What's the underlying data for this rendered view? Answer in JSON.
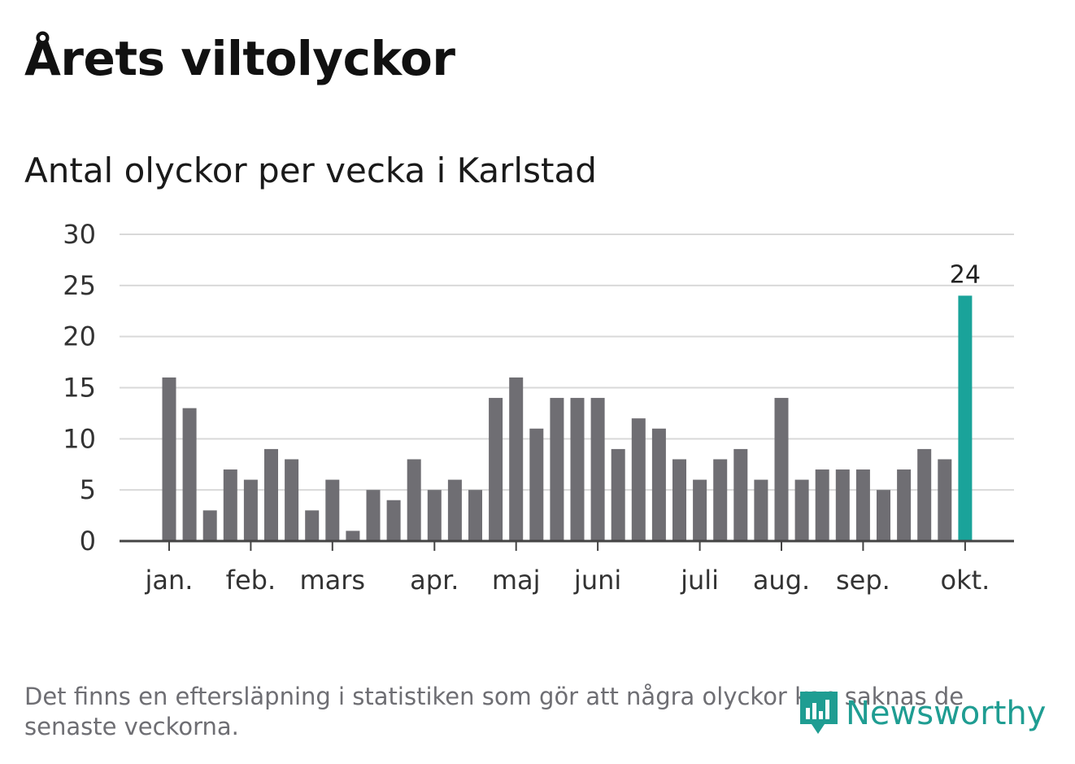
{
  "header": {
    "title": "Årets viltolyckor",
    "subtitle": "Antal olyckor per vecka i Karlstad"
  },
  "footer": {
    "note": "Det finns en eftersläpning i statistiken som gör att några olyckor kan saknas de senaste veckorna.",
    "logo_text": "Newsworthy"
  },
  "colors": {
    "bar": "#6f6e73",
    "highlight": "#1aa39a",
    "grid": "#d9d9d9",
    "axis": "#444444",
    "logo": "#1f9d92"
  },
  "chart_data": {
    "type": "bar",
    "title": "Årets viltolyckor",
    "subtitle": "Antal olyckor per vecka i Karlstad",
    "xlabel": "",
    "ylabel": "",
    "ylim": [
      0,
      30
    ],
    "yticks": [
      0,
      5,
      10,
      15,
      20,
      25,
      30
    ],
    "grid": true,
    "values": [
      16,
      13,
      3,
      7,
      6,
      9,
      8,
      3,
      6,
      1,
      5,
      4,
      8,
      5,
      6,
      5,
      14,
      16,
      11,
      14,
      14,
      14,
      9,
      12,
      11,
      8,
      6,
      8,
      9,
      6,
      14,
      6,
      7,
      7,
      7,
      5,
      7,
      9,
      8,
      24
    ],
    "highlight_index": 39,
    "highlight_label": "24",
    "month_labels": [
      {
        "label": "jan.",
        "bar_index": 0
      },
      {
        "label": "feb.",
        "bar_index": 4
      },
      {
        "label": "mars",
        "bar_index": 8
      },
      {
        "label": "apr.",
        "bar_index": 13
      },
      {
        "label": "maj",
        "bar_index": 17
      },
      {
        "label": "juni",
        "bar_index": 21
      },
      {
        "label": "juli",
        "bar_index": 26
      },
      {
        "label": "aug.",
        "bar_index": 30
      },
      {
        "label": "sep.",
        "bar_index": 34
      },
      {
        "label": "okt.",
        "bar_index": 39
      }
    ]
  }
}
